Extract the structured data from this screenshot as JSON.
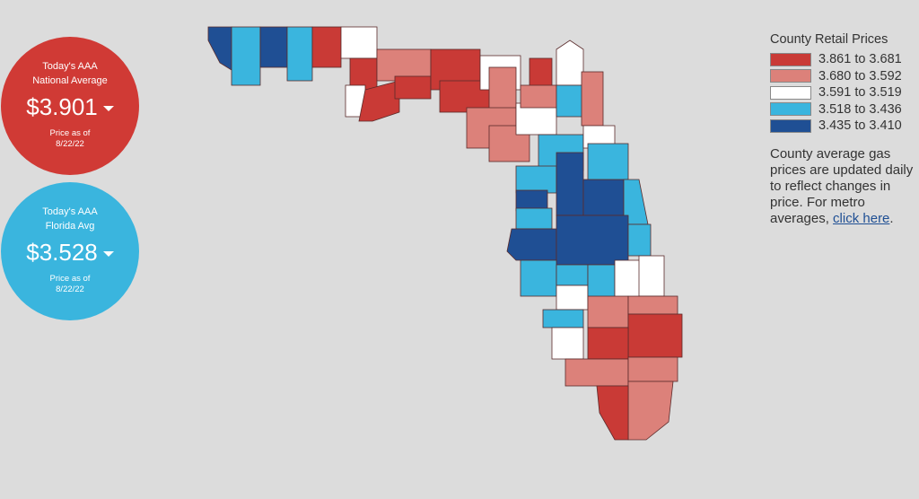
{
  "national": {
    "line1": "Today's AAA",
    "line2": "National Average",
    "price": "$3.901",
    "note": "Price as of",
    "date": "8/22/22",
    "color": "#d03a35"
  },
  "florida": {
    "line1": "Today's AAA",
    "line2": "Florida Avg",
    "price": "$3.528",
    "note": "Price as of",
    "date": "8/22/22",
    "color": "#3ab5de"
  },
  "legend": {
    "title": "County Retail Prices",
    "items": [
      {
        "label": "3.861 to 3.681",
        "color": "#c93a36"
      },
      {
        "label": "3.680 to 3.592",
        "color": "#dc817a"
      },
      {
        "label": "3.591 to 3.519",
        "color": "#ffffff"
      },
      {
        "label": "3.518 to 3.436",
        "color": "#3ab5de"
      },
      {
        "label": "3.435 to 3.410",
        "color": "#1f4f94"
      }
    ]
  },
  "description": {
    "text": "County average gas prices are updated daily to reflect changes in price. For metro averages,",
    "link": "click here",
    "end": "."
  }
}
